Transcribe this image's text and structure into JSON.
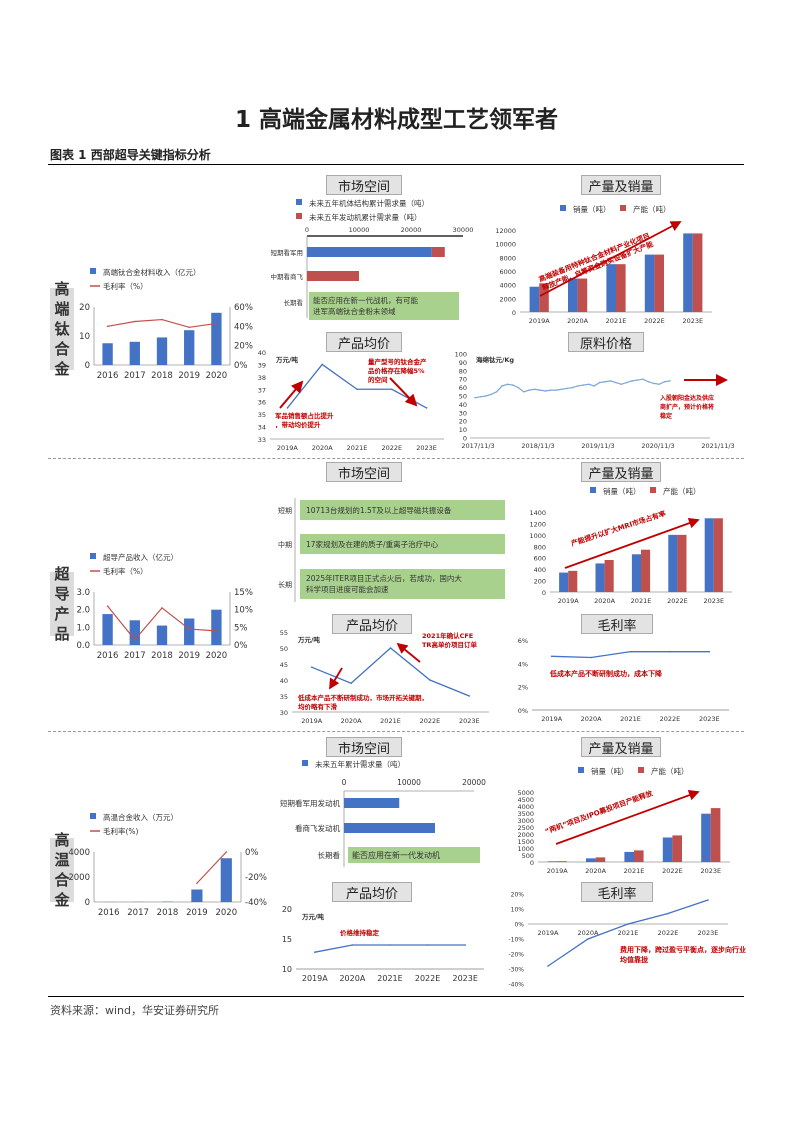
{
  "page": {
    "heading": "1 高端金属材料成型工艺领军者",
    "figure_title": "图表 1 西部超导关键指标分析",
    "source": "资料来源：wind，华安证券研究所"
  },
  "colors": {
    "blue": "#4472c4",
    "red": "#c0504d",
    "green": "#a9d18e",
    "arrow": "#c00000",
    "line_red": "#c0504d"
  },
  "sections": {
    "s1": {
      "label": "高端钛合金",
      "headers": {
        "market": "市场空间",
        "production": "产量及销量",
        "price": "产品均价",
        "raw": "原料价格"
      }
    },
    "s2": {
      "label": "超导产品",
      "headers": {
        "market": "市场空间",
        "production": "产量及销量",
        "price": "产品均价",
        "margin": "毛利率"
      }
    },
    "s3": {
      "label": "高温合金",
      "headers": {
        "market": "市场空间",
        "production": "产量及销量",
        "price": "产品均价",
        "margin": "毛利率"
      }
    }
  },
  "chart_data": [
    {
      "id": "ti_revenue",
      "type": "bar+line",
      "categories": [
        "2016",
        "2017",
        "2018",
        "2019",
        "2020"
      ],
      "series": [
        {
          "name": "高端钛合金材料收入（亿元）",
          "type": "bar",
          "axis": "left",
          "values": [
            7.5,
            8,
            9.5,
            12,
            18
          ]
        },
        {
          "name": "毛利率（%）",
          "type": "line",
          "axis": "right",
          "values": [
            40,
            45,
            47,
            39,
            43
          ]
        }
      ],
      "ylim_left": [
        0,
        20
      ],
      "yticks_left": [
        "0",
        "10",
        "20"
      ],
      "ylim_right": [
        0,
        60
      ],
      "yticks_right": [
        "0%",
        "20%",
        "40%",
        "60%"
      ]
    },
    {
      "id": "ti_market",
      "type": "hbar-stacked",
      "categories": [
        "短期看军用",
        "中期看商飞",
        "长期看"
      ],
      "series": [
        {
          "name": "未来五年机体结构累计需求量（吨）",
          "values": [
            24000,
            0,
            0
          ]
        },
        {
          "name": "未来五年发动机累计需求量（吨）",
          "values": [
            2500,
            10000,
            0
          ]
        }
      ],
      "xlim": [
        0,
        30000
      ],
      "xticks": [
        "0",
        "10000",
        "20000",
        "30000"
      ],
      "annotation": "能否应用在新一代战机，有可能进军高端钛合金粉末领域"
    },
    {
      "id": "ti_production",
      "type": "bar",
      "categories": [
        "2019A",
        "2020A",
        "2021E",
        "2022E",
        "2023E"
      ],
      "series": [
        {
          "name": "销量（吨）",
          "values": [
            3700,
            4900,
            7000,
            8400,
            11500
          ]
        },
        {
          "name": "产能（吨）",
          "values": [
            4200,
            4900,
            7000,
            8400,
            11500
          ]
        }
      ],
      "ylim": [
        0,
        12000
      ],
      "yticks": [
        "0",
        "2000",
        "4000",
        "6000",
        "8000",
        "10000",
        "12000"
      ],
      "annotation": "高端装备用特种钛合金材料产业化项目释放产能，自筹资金购买设备扩大产能"
    },
    {
      "id": "ti_price",
      "type": "line",
      "categories": [
        "2019A",
        "2020A",
        "2021E",
        "2022E",
        "2023E"
      ],
      "values": [
        35.5,
        39,
        37,
        37,
        35.5
      ],
      "ylim": [
        33,
        40
      ],
      "yticks": [
        "33",
        "34",
        "35",
        "36",
        "37",
        "38",
        "39",
        "40"
      ],
      "unit": "万元/吨",
      "annotations": [
        "军品销售额占比提升，带动均价提升",
        "量产型号的钛合金产品价格存在降幅5%的空间"
      ]
    },
    {
      "id": "raw_price",
      "type": "line",
      "xticks": [
        "2017/11/3",
        "2018/11/3",
        "2019/11/3",
        "2020/11/3",
        "2021/11/3"
      ],
      "values": [
        48,
        49,
        50,
        52,
        55,
        62,
        64,
        63,
        60,
        55,
        57,
        58,
        57,
        56,
        57,
        57,
        58,
        59,
        60,
        62,
        63,
        64,
        62,
        66,
        67,
        68,
        66,
        64,
        66,
        68,
        69,
        70,
        67,
        65,
        64,
        67,
        68
      ],
      "ylim": [
        0,
        100
      ],
      "yticks": [
        "0",
        "10",
        "20",
        "30",
        "40",
        "50",
        "60",
        "70",
        "80",
        "90",
        "100"
      ],
      "unit": "海绵钛元/Kg",
      "annotation": "入股朝阳金达及供应商扩产，预计价格将稳定"
    },
    {
      "id": "sc_revenue",
      "type": "bar+line",
      "categories": [
        "2016",
        "2017",
        "2018",
        "2019",
        "2020"
      ],
      "series": [
        {
          "name": "超导产品收入（亿元）",
          "type": "bar",
          "axis": "left",
          "values": [
            1.75,
            1.4,
            1.1,
            1.5,
            2.0
          ]
        },
        {
          "name": "毛利率（%）",
          "type": "line",
          "axis": "right",
          "values": [
            11,
            1.5,
            10.5,
            4.5,
            4
          ]
        }
      ],
      "ylim_left": [
        0,
        3
      ],
      "yticks_left": [
        "0.0",
        "1.0",
        "2.0",
        "3.0"
      ],
      "ylim_right": [
        0,
        15
      ],
      "yticks_right": [
        "0%",
        "5%",
        "10%",
        "15%"
      ]
    },
    {
      "id": "sc_market",
      "type": "text-list",
      "categories": [
        "短期",
        "中期",
        "长期"
      ],
      "items": [
        "10713台规划的1.5T及以上超导磁共振设备",
        "17家规划及在建的质子/重离子治疗中心",
        "2025年ITER项目正式点火后，若成功，国内大科学项目进度可能会加速"
      ]
    },
    {
      "id": "sc_production",
      "type": "bar",
      "categories": [
        "2019A",
        "2020A",
        "2021E",
        "2022E",
        "2023E"
      ],
      "series": [
        {
          "name": "销量（吨）",
          "values": [
            340,
            500,
            660,
            1000,
            1290
          ]
        },
        {
          "name": "产能（吨）",
          "values": [
            370,
            560,
            740,
            1000,
            1290
          ]
        }
      ],
      "ylim": [
        0,
        1400
      ],
      "yticks": [
        "0",
        "200",
        "400",
        "600",
        "800",
        "1000",
        "1200",
        "1400"
      ],
      "annotation": "产能提升以扩大MRI市场占有率"
    },
    {
      "id": "sc_price",
      "type": "line",
      "categories": [
        "2019A",
        "2020A",
        "2021E",
        "2022E",
        "2023E"
      ],
      "values": [
        44,
        39,
        50,
        40,
        35
      ],
      "ylim": [
        30,
        55
      ],
      "yticks": [
        "30",
        "35",
        "40",
        "45",
        "50",
        "55"
      ],
      "unit": "万元/吨",
      "annotations": [
        "低成本产品不断研制成功，市场开拓关键期，均价略有下滑",
        "2021年确认CFETR高单价项目订单"
      ]
    },
    {
      "id": "sc_margin",
      "type": "line",
      "categories": [
        "2019A",
        "2020A",
        "2021E",
        "2022E",
        "2023E"
      ],
      "values": [
        4.6,
        4.5,
        5.0,
        5.0,
        5.0
      ],
      "ylim": [
        0,
        6
      ],
      "yticks": [
        "0%",
        "2%",
        "4%",
        "6%"
      ],
      "annotation": "低成本产品不断研制成功，成本下降"
    },
    {
      "id": "ha_revenue",
      "type": "bar+line",
      "categories": [
        "2016",
        "2017",
        "2018",
        "2019",
        "2020"
      ],
      "series": [
        {
          "name": "高温合金收入（万元）",
          "type": "bar",
          "axis": "left",
          "values": [
            10,
            15,
            30,
            1000,
            3500
          ]
        },
        {
          "name": "毛利率(%)",
          "type": "line",
          "axis": "right",
          "values": [
            null,
            null,
            null,
            -25,
            0
          ]
        }
      ],
      "ylim_left": [
        0,
        4000
      ],
      "yticks_left": [
        "0",
        "2000",
        "4000"
      ],
      "ylim_right": [
        -40,
        0
      ],
      "yticks_right": [
        "-40%",
        "-20%",
        "0%"
      ]
    },
    {
      "id": "ha_market",
      "type": "hbar",
      "categories": [
        "短期看军用发动机",
        "看商飞发动机",
        "长期看"
      ],
      "series": [
        {
          "name": "未来五年累计需求量（吨）",
          "values": [
            8500,
            14000,
            0
          ]
        }
      ],
      "xlim": [
        0,
        20000
      ],
      "xticks": [
        "0",
        "10000",
        "20000"
      ],
      "annotation": "能否应用在新一代发动机"
    },
    {
      "id": "ha_production",
      "type": "bar",
      "categories": [
        "2019A",
        "2020A",
        "2021E",
        "2022E",
        "2023E"
      ],
      "series": [
        {
          "name": "销量（吨）",
          "values": [
            50,
            260,
            720,
            1750,
            3450
          ]
        },
        {
          "name": "产能（吨）",
          "values": [
            60,
            330,
            830,
            1900,
            3850
          ]
        }
      ],
      "ylim": [
        0,
        5000
      ],
      "yticks": [
        "0",
        "500",
        "1000",
        "1500",
        "2000",
        "2500",
        "3000",
        "3500",
        "4000",
        "4500",
        "5000"
      ],
      "annotation": "“两机”项目及IPO募投项目产能释放"
    },
    {
      "id": "ha_price",
      "type": "line",
      "categories": [
        "2019A",
        "2020A",
        "2021E",
        "2022E",
        "2023E"
      ],
      "values": [
        12.8,
        14,
        14,
        14,
        14
      ],
      "ylim": [
        10,
        20
      ],
      "yticks": [
        "10",
        "15",
        "20"
      ],
      "unit": "万元/吨",
      "annotation": "价格维持稳定"
    },
    {
      "id": "ha_margin",
      "type": "line",
      "categories": [
        "2019A",
        "2020A",
        "2021E",
        "2022E",
        "2023E"
      ],
      "values": [
        -28,
        -10,
        0,
        7,
        16
      ],
      "ylim": [
        -40,
        20
      ],
      "yticks": [
        "-40%",
        "-30%",
        "-20%",
        "-10%",
        "0%",
        "10%",
        "20%"
      ],
      "annotation": "费用下降，跨过盈亏平衡点，逐步向行业均值靠拢"
    }
  ]
}
